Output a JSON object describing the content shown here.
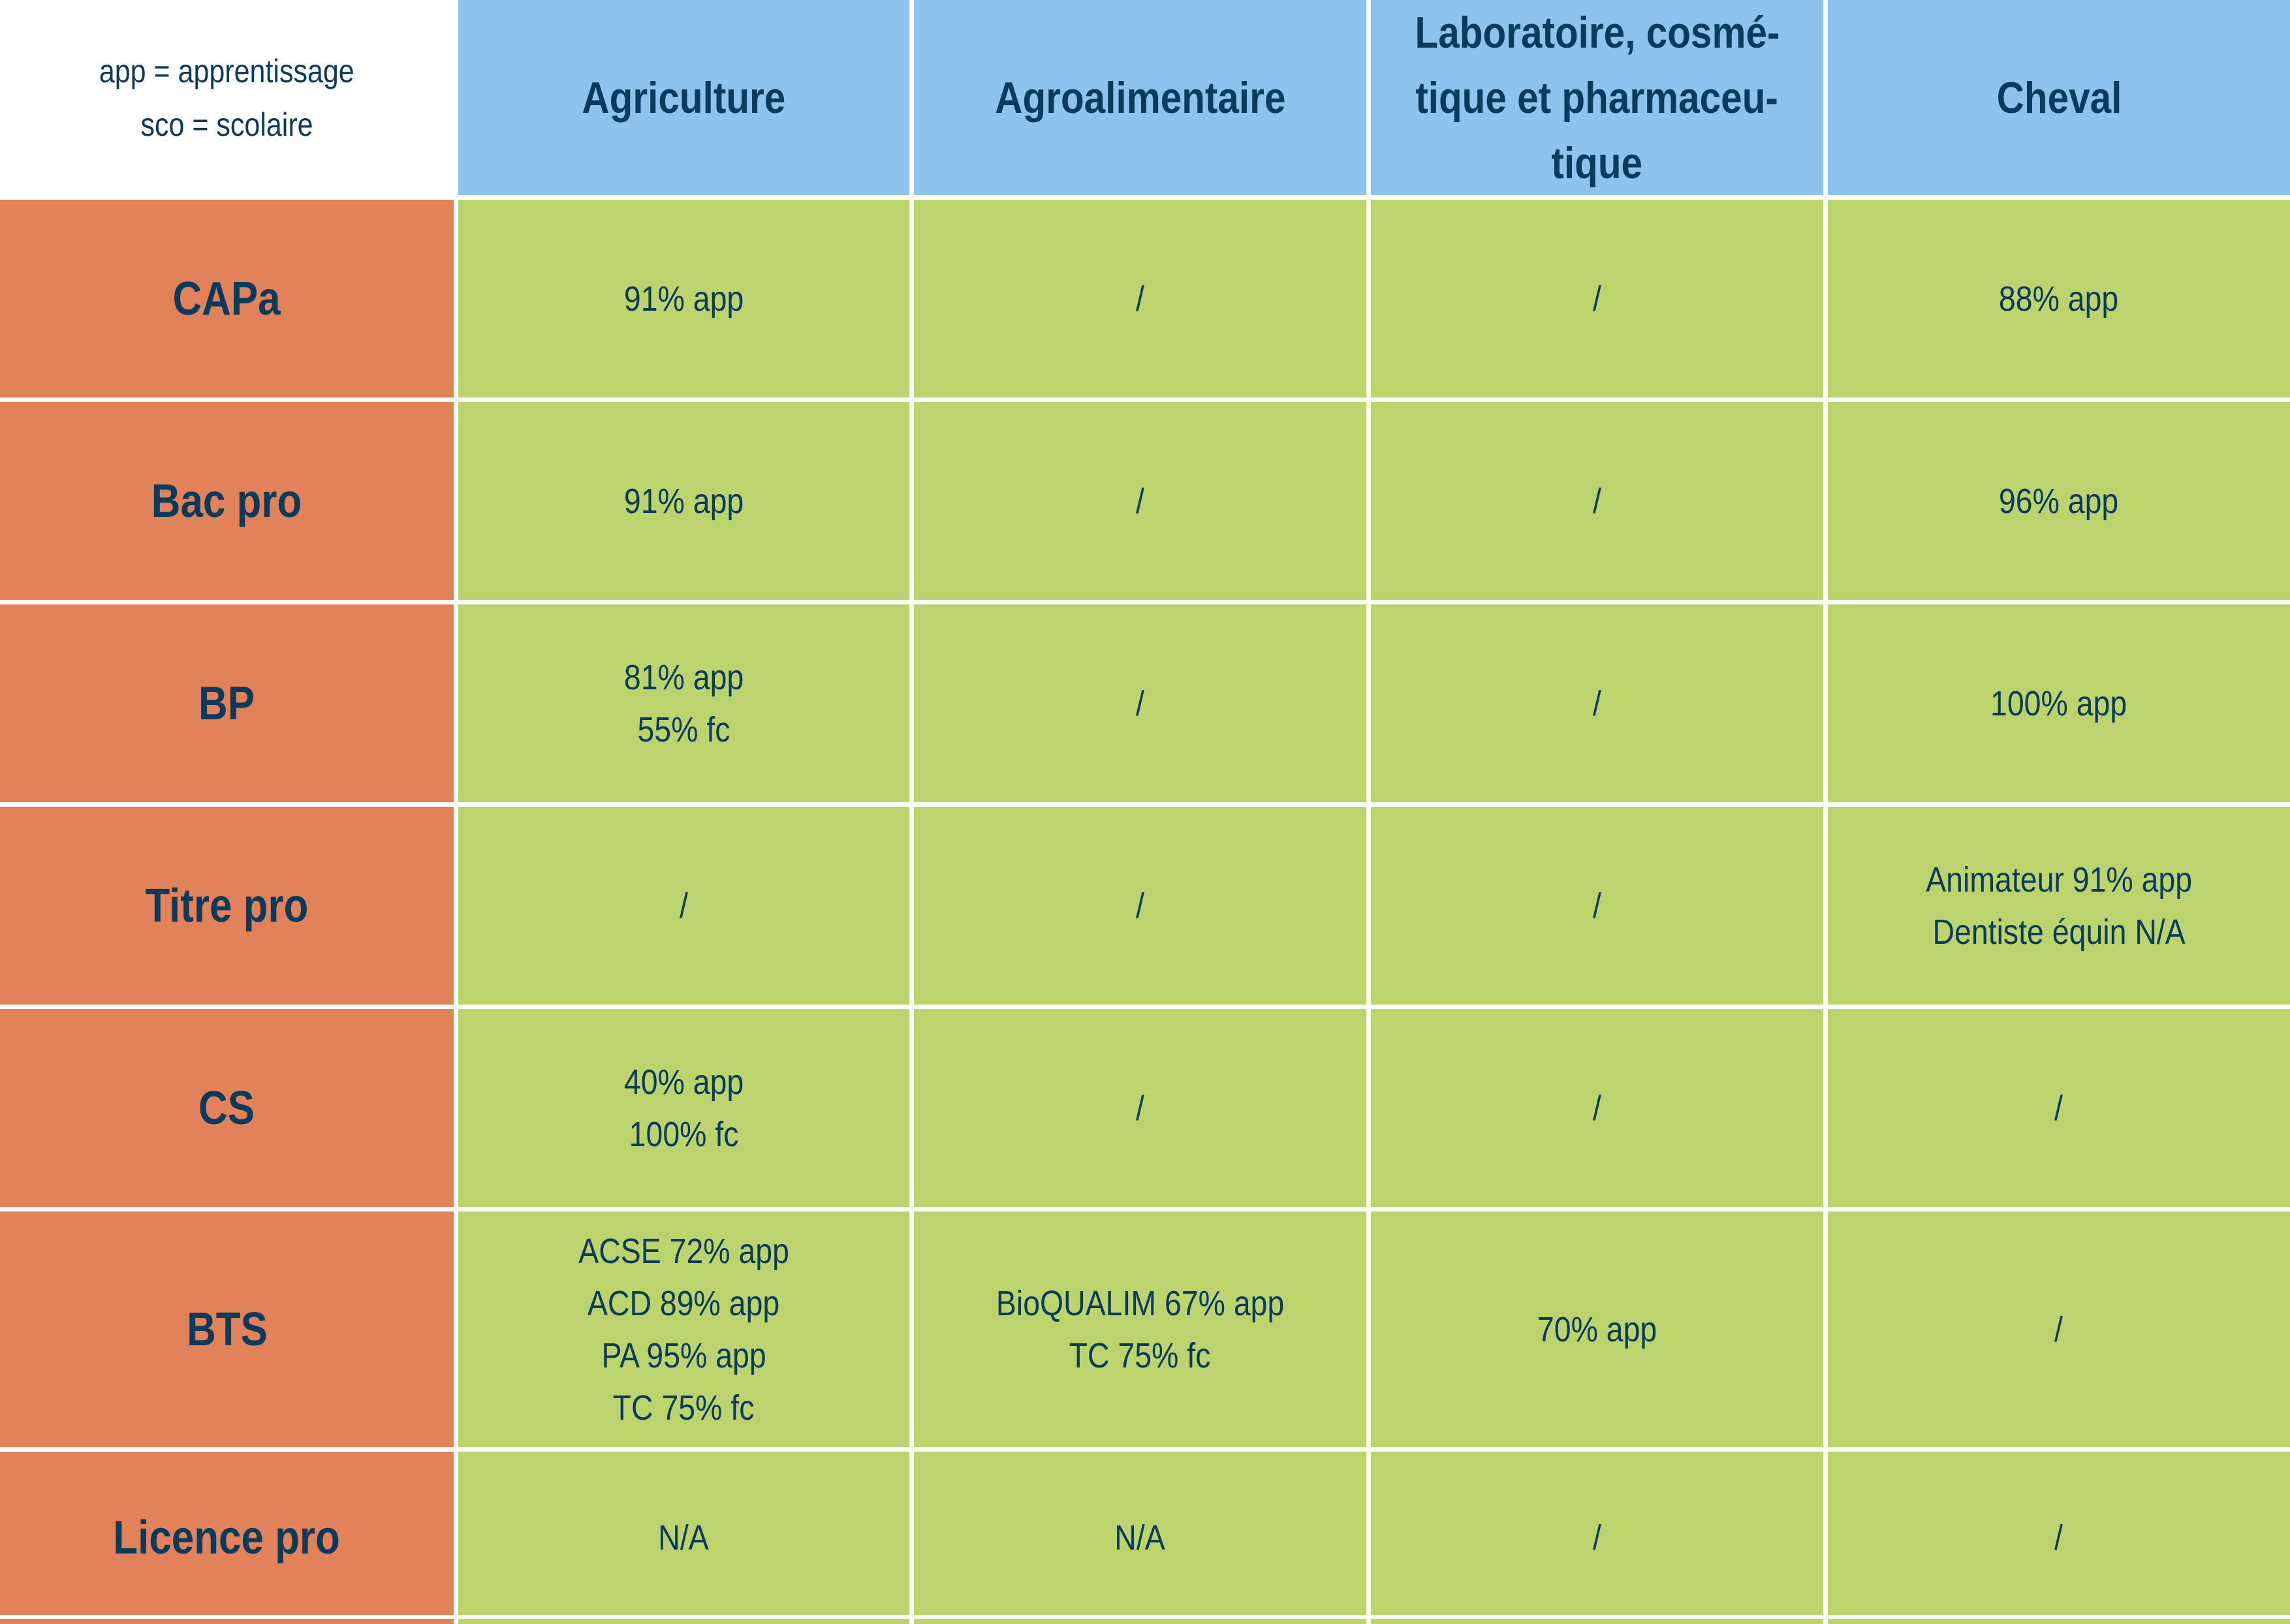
{
  "legend": {
    "line1": "app = apprentissage",
    "line2": "sco = scolaire"
  },
  "columns": [
    {
      "lines": [
        "Agriculture"
      ]
    },
    {
      "lines": [
        "Agroalimentaire"
      ]
    },
    {
      "lines": [
        "Laboratoire, cosmé-",
        "tique et pharmaceu-",
        "tique"
      ]
    },
    {
      "lines": [
        "Cheval"
      ]
    }
  ],
  "rows": [
    {
      "label": "CAPa",
      "cells": [
        [
          "91% app"
        ],
        [
          "/"
        ],
        [
          "/"
        ],
        [
          "88% app"
        ]
      ]
    },
    {
      "label": "Bac pro",
      "cells": [
        [
          "91% app"
        ],
        [
          "/"
        ],
        [
          "/"
        ],
        [
          "96% app"
        ]
      ]
    },
    {
      "label": "BP",
      "cells": [
        [
          "81% app",
          "55% fc"
        ],
        [
          "/"
        ],
        [
          "/"
        ],
        [
          "100% app"
        ]
      ]
    },
    {
      "label": "Titre pro",
      "cells": [
        [
          "/"
        ],
        [
          "/"
        ],
        [
          "/"
        ],
        [
          "Animateur 91% app",
          "Dentiste équin N/A"
        ]
      ]
    },
    {
      "label": "CS",
      "cells": [
        [
          "40% app",
          "100% fc"
        ],
        [
          "/"
        ],
        [
          "/"
        ],
        [
          "/"
        ]
      ]
    },
    {
      "label": "BTS",
      "cells": [
        [
          "ACSE 72% app",
          "ACD 89% app",
          "PA 95% app",
          "TC 75% fc"
        ],
        [
          "BioQUALIM 67% app",
          "TC 75% fc"
        ],
        [
          "70% app"
        ],
        [
          "/"
        ]
      ]
    },
    {
      "label": "Licence pro",
      "cells": [
        [
          "N/A"
        ],
        [
          "N/A"
        ],
        [
          "/"
        ],
        [
          "/"
        ]
      ]
    }
  ],
  "colors": {
    "header_blue": "#8dc3ec",
    "row_orange": "#e2825a",
    "cell_green": "#bcd46e",
    "text_navy": "#0b3a5c"
  }
}
